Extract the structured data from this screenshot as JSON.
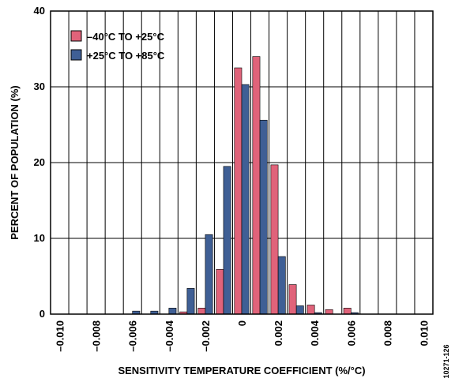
{
  "chart_data": {
    "type": "bar",
    "title": "",
    "xlabel": "SENSITIVITY TEMPERATURE COEFFICIENT (%/°C)",
    "ylabel": "PERCENT OF POPULATION (%)",
    "xlim": [
      -0.0105,
      0.0105
    ],
    "ylim": [
      0,
      40
    ],
    "grid": true,
    "legend_position": "top-left",
    "x_tick_labels": [
      "–0.010",
      "–0.008",
      "–0.006",
      "–0.004",
      "–0.002",
      "0",
      "0.002",
      "0.004",
      "0.006",
      "0.008",
      "0.010"
    ],
    "x_tick_values": [
      -0.01,
      -0.008,
      -0.006,
      -0.004,
      -0.002,
      0,
      0.002,
      0.004,
      0.006,
      0.008,
      0.01
    ],
    "y_tick_labels": [
      "0",
      "10",
      "20",
      "30",
      "40"
    ],
    "y_tick_values": [
      0,
      10,
      20,
      30,
      40
    ],
    "x": [
      -0.01,
      -0.009,
      -0.008,
      -0.007,
      -0.006,
      -0.005,
      -0.004,
      -0.003,
      -0.002,
      -0.001,
      0.0,
      0.001,
      0.002,
      0.003,
      0.004,
      0.005,
      0.006,
      0.007,
      0.008,
      0.009,
      0.01
    ],
    "series": [
      {
        "name": "–40°C TO +25°C",
        "color": "#e0637a",
        "values": [
          0,
          0,
          0,
          0,
          0,
          0,
          0,
          0.3,
          0.8,
          5.9,
          32.5,
          34.0,
          19.7,
          3.9,
          1.2,
          0.6,
          0.8,
          0,
          0,
          0,
          0
        ]
      },
      {
        "name": "+25°C TO +85°C",
        "color": "#3f5f95",
        "values": [
          0,
          0,
          0,
          0,
          0.4,
          0.4,
          0.8,
          3.4,
          10.5,
          19.5,
          30.3,
          25.6,
          7.6,
          1.1,
          0.2,
          0,
          0.2,
          0,
          0,
          0,
          0
        ]
      }
    ]
  },
  "side_note": "10271-126"
}
